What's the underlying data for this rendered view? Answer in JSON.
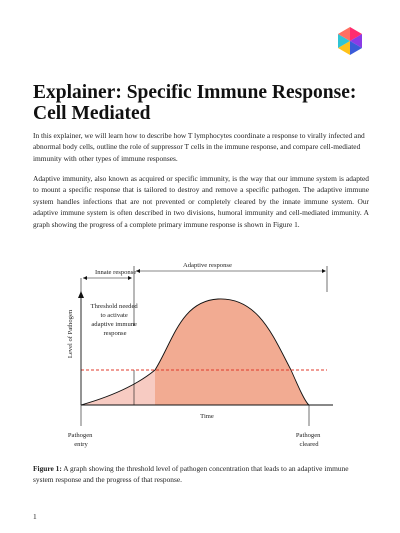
{
  "header": {
    "logo_icon": "nagwa-hexagon-logo-icon",
    "logo_colors": [
      "#2fc4d4",
      "#ff2d6f",
      "#8a3be6",
      "#ffc21a",
      "#3a5bd9"
    ]
  },
  "title": "Explainer: Specific Immune Response: Cell Mediated",
  "paragraphs": [
    "In this explainer, we will learn how to describe how T lymphocytes coordinate a response to virally infected and abnormal body cells, outline the role of suppressor T cells in the immune response, and compare cell-mediated immunity with other types of immune responses.",
    "Adaptive immunity, also known as acquired or specific immunity, is the way that our immune system is adapted to mount a specific response that is tailored to destroy and remove a specific pathogen. The adaptive immune system handles infections that are not prevented or completely cleared by the innate immune system. Our adaptive immune system is often described in two divisions, humoral immunity and cell-mediated immunity. A graph showing the progress of a complete primary immune response is shown in Figure 1."
  ],
  "figure": {
    "innate_label": "Innate response",
    "adaptive_label": "Adaptive response",
    "y_axis_label": "Level of Pathogen",
    "x_axis_label": "Time",
    "threshold_label_lines": [
      "Threshold needed",
      "to activate",
      "adaptive immune",
      "response"
    ],
    "entry_label_lines": [
      "Pathogen",
      "entry"
    ],
    "cleared_label_lines": [
      "Pathogen",
      "cleared"
    ],
    "colors": {
      "innate_fill": "#f7cbc2",
      "adaptive_fill": "#f2ab92",
      "threshold_line": "#e0392b",
      "axis": "#111111"
    }
  },
  "caption": {
    "label": "Figure 1:",
    "text": " A graph showing the threshold level of pathogen concentration that leads to an adaptive immune system response and the progress of that response."
  },
  "page_number": "1"
}
